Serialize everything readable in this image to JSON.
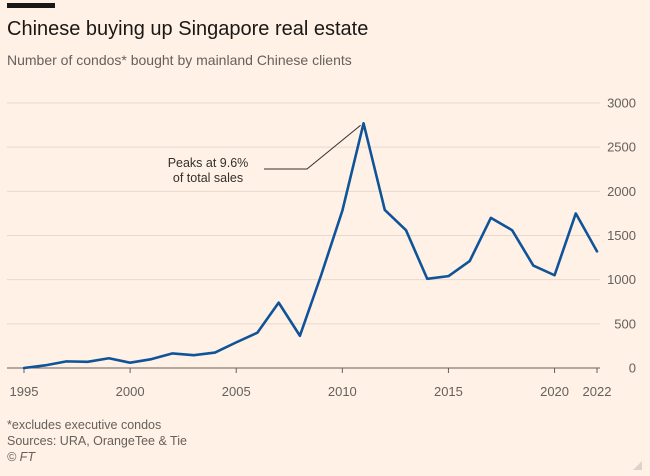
{
  "title": "Chinese buying up Singapore real estate",
  "subtitle": "Number of condos* bought by mainland Chinese clients",
  "footnotes": {
    "note": "*excludes executive condos",
    "sources": "Sources: URA, OrangeTee & Tie",
    "credit": "© FT"
  },
  "colors": {
    "line": "#0f5499",
    "grid": "#e6d9ce",
    "zero": "#66605c",
    "background": "#fff1e5"
  },
  "chart_data": {
    "type": "line",
    "title": "Chinese buying up Singapore real estate",
    "subtitle": "Number of condos* bought by mainland Chinese clients",
    "xlabel": "",
    "ylabel": "",
    "xlim": [
      1995,
      2022
    ],
    "ylim": [
      0,
      3000
    ],
    "yticks": [
      0,
      500,
      1000,
      1500,
      2000,
      2500,
      3000
    ],
    "xticks": [
      "1995",
      "2000",
      "2005",
      "2010",
      "2015",
      "2020",
      "2022"
    ],
    "grid": true,
    "y_axis_side": "right",
    "x": [
      1995,
      1996,
      1997,
      1998,
      1999,
      2000,
      2001,
      2002,
      2003,
      2004,
      2005,
      2006,
      2007,
      2008,
      2009,
      2010,
      2011,
      2012,
      2013,
      2014,
      2015,
      2016,
      2017,
      2018,
      2019,
      2020,
      2021,
      2022
    ],
    "y": [
      0,
      30,
      75,
      70,
      110,
      60,
      100,
      165,
      145,
      175,
      290,
      400,
      740,
      365,
      1050,
      1780,
      2770,
      1790,
      1560,
      1010,
      1040,
      1210,
      1700,
      1560,
      1160,
      1050,
      1750,
      1320
    ],
    "annotation": {
      "x": 2011,
      "y": 2770,
      "lines": [
        "Peaks at 9.6%",
        "of total sales"
      ]
    }
  }
}
